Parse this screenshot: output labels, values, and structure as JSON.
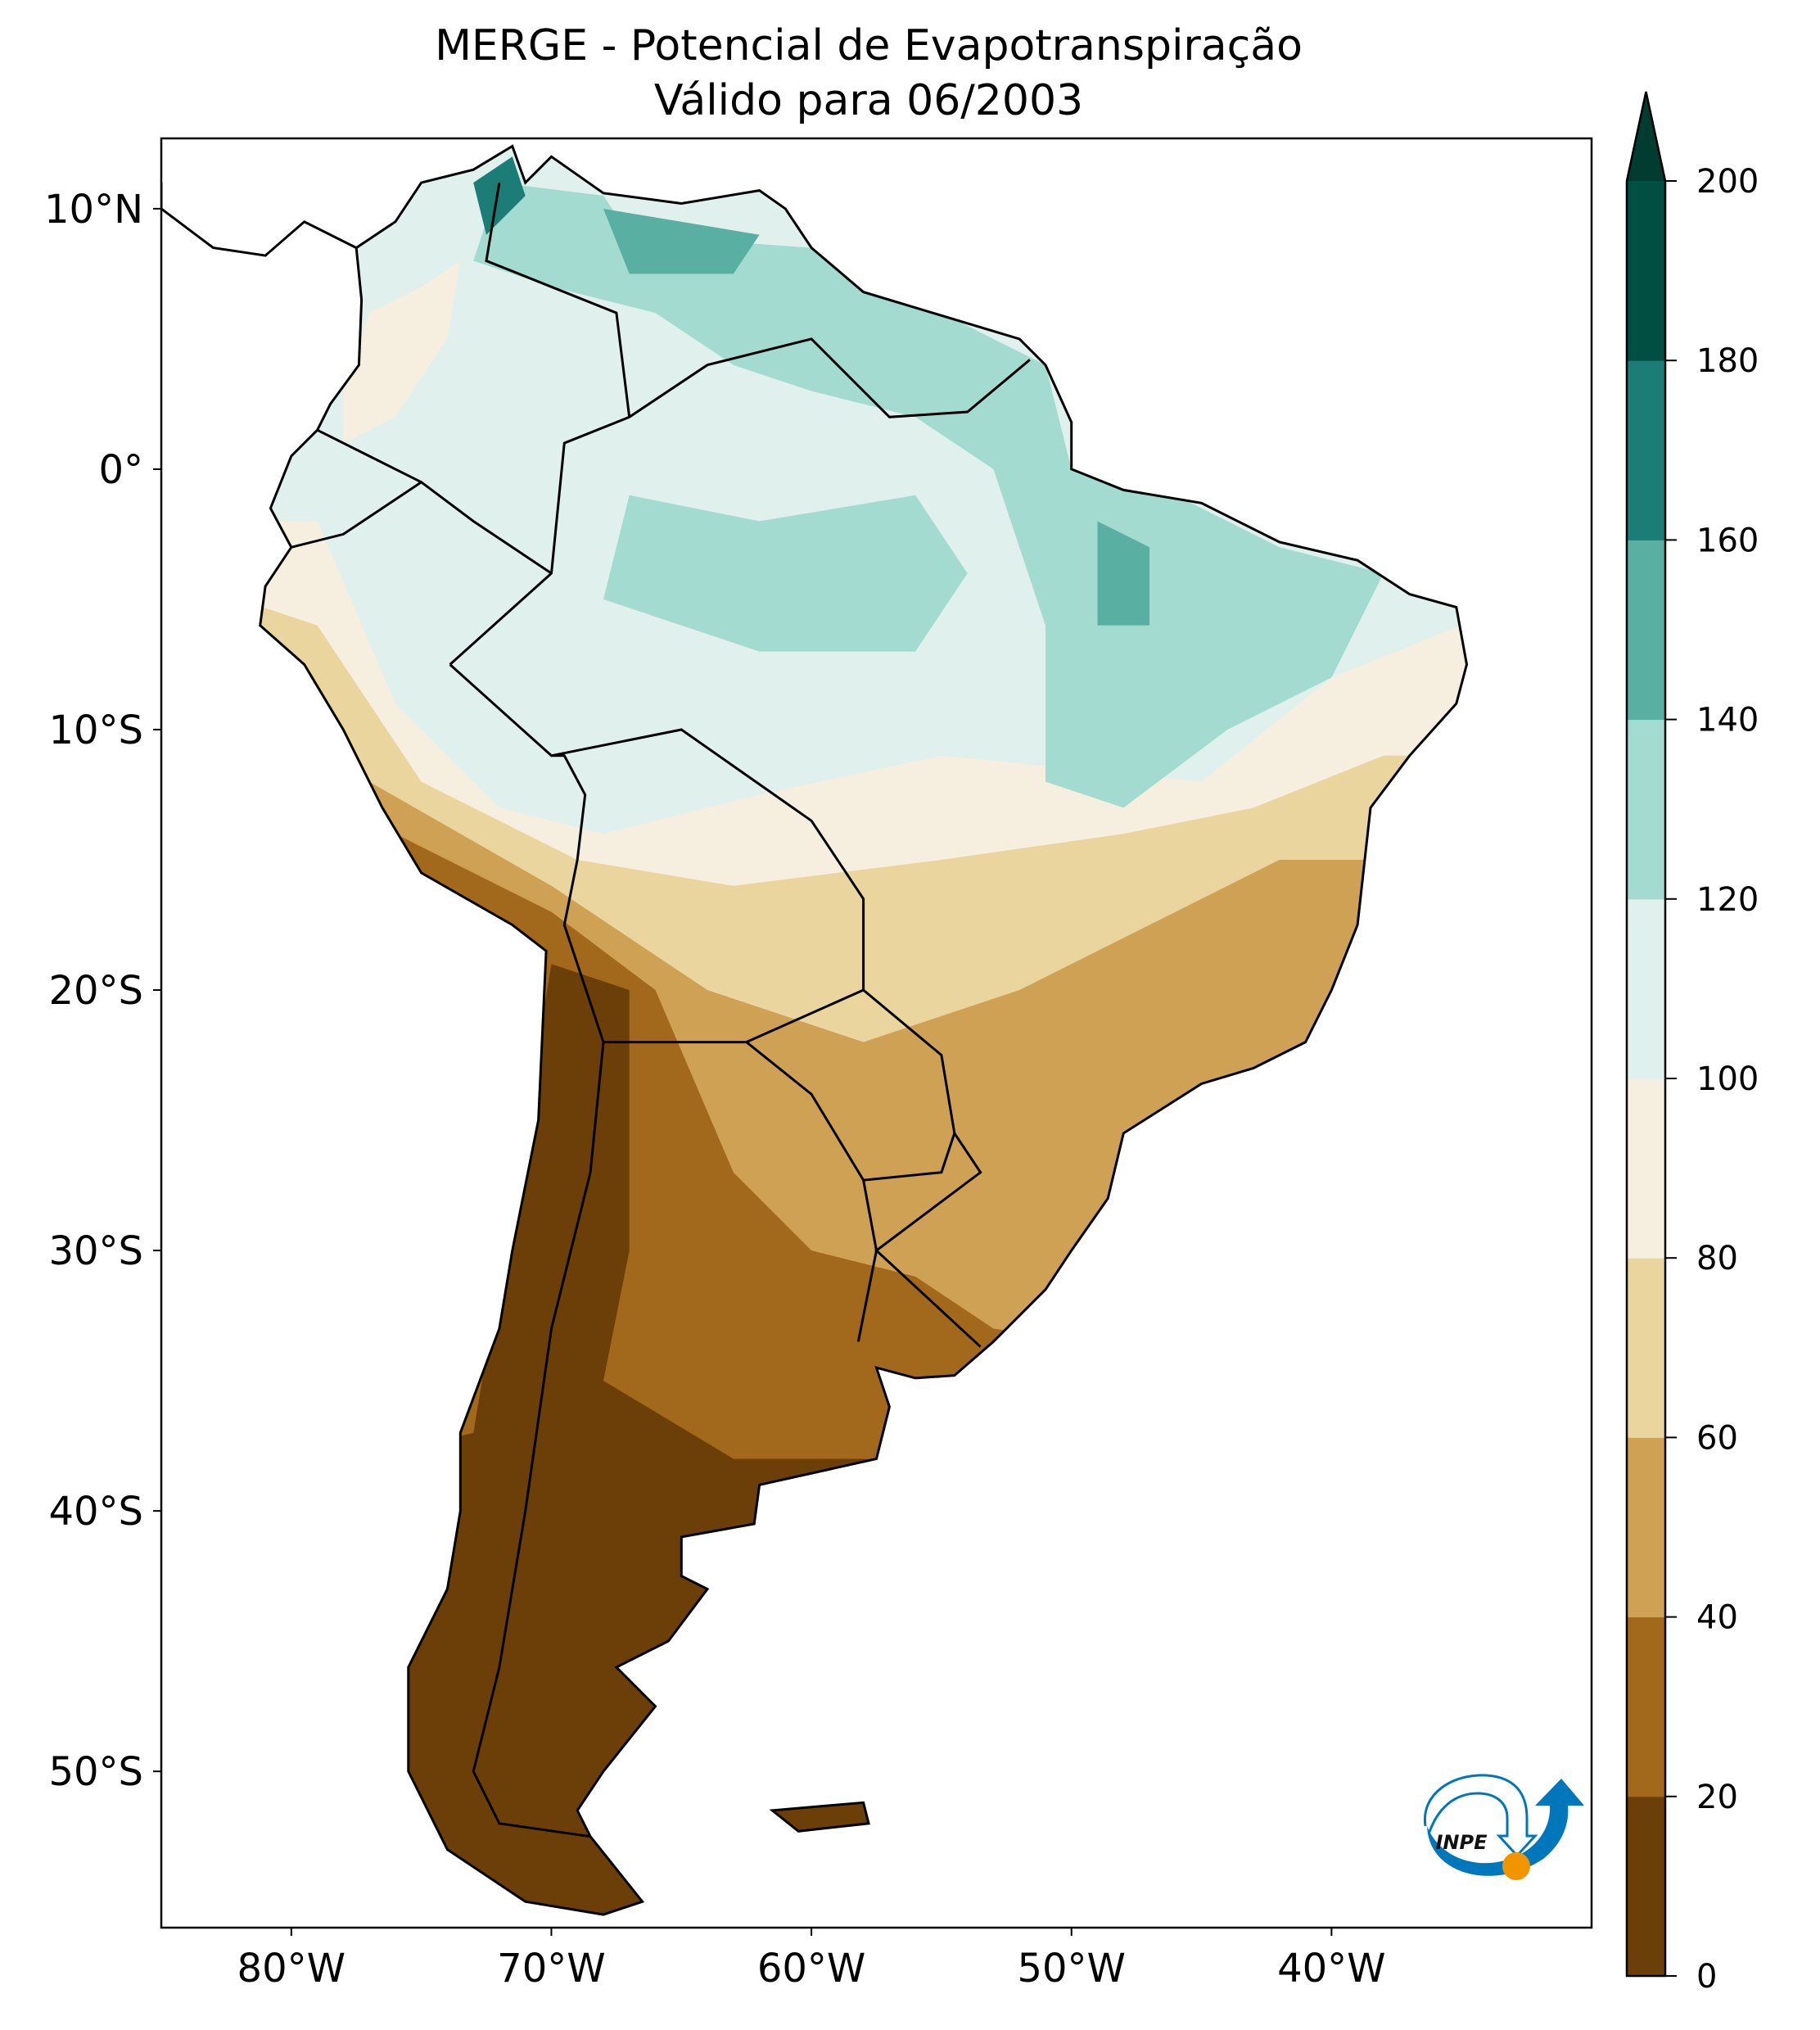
{
  "title": {
    "line1": "MERGE - Potencial de Evapotranspiração",
    "line2": "Válido para 06/2003"
  },
  "chart_data": {
    "type": "heatmap",
    "subtype": "filled-contour map",
    "lon_range": [
      -85,
      -30
    ],
    "lat_range": [
      -56,
      12.7
    ],
    "x_ticks": [
      {
        "value": -80,
        "label": "80°W"
      },
      {
        "value": -70,
        "label": "70°W"
      },
      {
        "value": -60,
        "label": "60°W"
      },
      {
        "value": -50,
        "label": "50°W"
      },
      {
        "value": -40,
        "label": "40°W"
      }
    ],
    "y_ticks": [
      {
        "value": 10,
        "label": "10°N"
      },
      {
        "value": 0,
        "label": "0°"
      },
      {
        "value": -10,
        "label": "10°S"
      },
      {
        "value": -20,
        "label": "20°S"
      },
      {
        "value": -30,
        "label": "30°S"
      },
      {
        "value": -40,
        "label": "40°S"
      },
      {
        "value": -50,
        "label": "50°S"
      }
    ],
    "colorbar": {
      "levels": [
        0,
        20,
        40,
        60,
        80,
        100,
        120,
        140,
        160,
        180,
        200
      ],
      "labels": [
        "0",
        "20",
        "40",
        "60",
        "80",
        "100",
        "120",
        "140",
        "160",
        "180",
        "200"
      ],
      "colors": [
        "#6d3f08",
        "#a2681b",
        "#cea154",
        "#ead59f",
        "#f6efdf",
        "#dff0ed",
        "#a4dbd0",
        "#5aafa3",
        "#1b7d75",
        "#014e42"
      ],
      "extend": "max",
      "extend_color": "#003c30"
    },
    "grid": false
  },
  "logo": {
    "text": "INPE",
    "blue": "#0077bb",
    "orange": "#f29400"
  }
}
